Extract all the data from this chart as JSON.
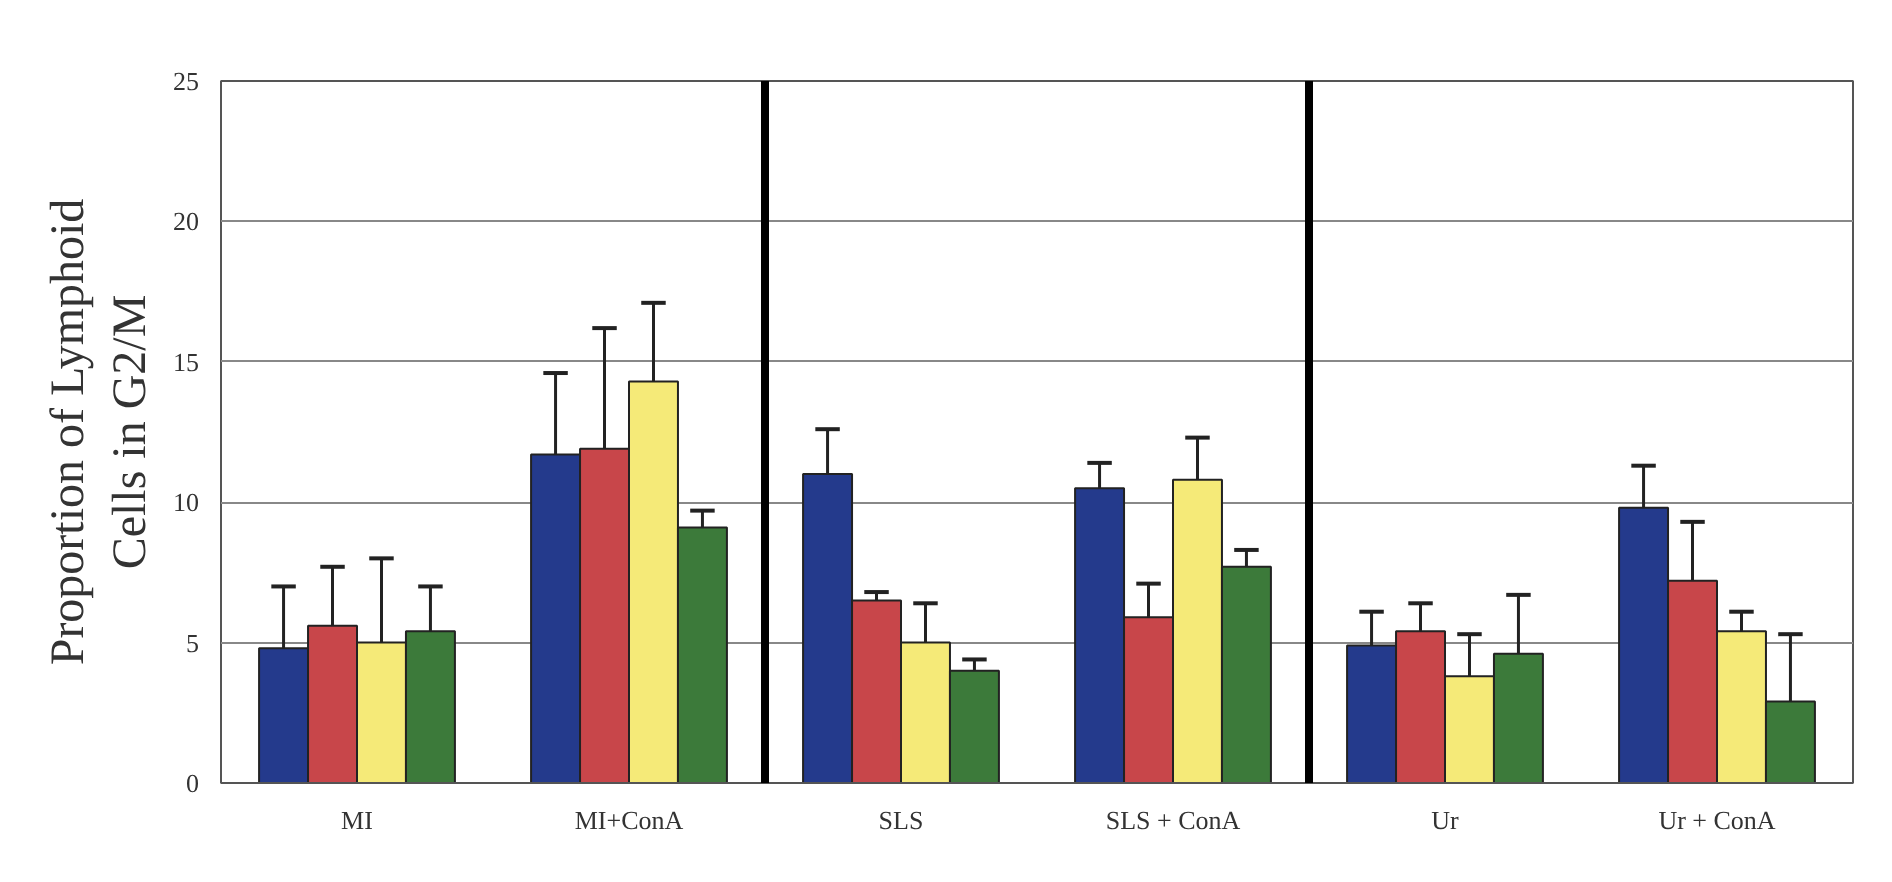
{
  "chart_data": {
    "type": "bar",
    "ylabel": "Proportion of Lymphoid\nCells in G2/M",
    "categories": [
      "MI",
      "MI+ConA",
      "SLS",
      "SLS + ConA",
      "Ur",
      "Ur + ConA"
    ],
    "series": [
      {
        "color": "#243a8c",
        "values": [
          4.8,
          11.7,
          11.0,
          10.5,
          4.9,
          9.8
        ],
        "errors": [
          [
            4.8,
            7.0
          ],
          [
            11.7,
            14.6
          ],
          [
            11.0,
            12.6
          ],
          [
            10.5,
            11.4
          ],
          [
            4.9,
            6.1
          ],
          [
            9.8,
            11.3
          ]
        ]
      },
      {
        "color": "#c8464a",
        "values": [
          5.6,
          11.9,
          6.5,
          5.9,
          5.4,
          7.2
        ],
        "errors": [
          [
            5.6,
            7.7
          ],
          [
            11.9,
            16.2
          ],
          [
            6.5,
            6.8
          ],
          [
            5.9,
            7.1
          ],
          [
            5.4,
            6.4
          ],
          [
            7.2,
            9.3
          ]
        ]
      },
      {
        "color": "#f5ea78",
        "values": [
          5.0,
          14.3,
          5.0,
          10.8,
          3.8,
          5.4
        ],
        "errors": [
          [
            5.0,
            8.0
          ],
          [
            14.3,
            17.1
          ],
          [
            5.0,
            6.4
          ],
          [
            10.8,
            12.3
          ],
          [
            3.8,
            5.3
          ],
          [
            5.4,
            6.1
          ]
        ]
      },
      {
        "color": "#3c7a3a",
        "values": [
          5.4,
          9.1,
          4.0,
          7.7,
          4.6,
          2.9
        ],
        "errors": [
          [
            5.4,
            7.0
          ],
          [
            9.1,
            9.7
          ],
          [
            4.0,
            4.4
          ],
          [
            7.7,
            8.3
          ],
          [
            4.6,
            6.7
          ],
          [
            2.9,
            5.3
          ]
        ]
      }
    ],
    "ylim": [
      0,
      25
    ],
    "yticks": [
      0,
      5,
      10,
      15,
      20,
      25
    ],
    "grid": "y"
  }
}
